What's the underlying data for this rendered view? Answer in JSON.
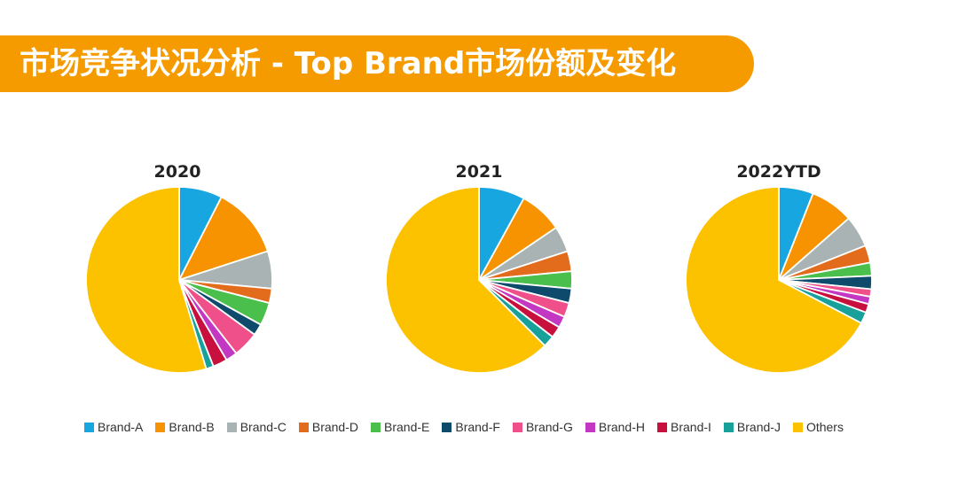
{
  "header": {
    "title": "市场竞争状况分析 - Top Brand市场份额及变化"
  },
  "colors": {
    "Brand-A": "#17a6e0",
    "Brand-B": "#f79200",
    "Brand-C": "#a9b3b3",
    "Brand-D": "#e26b1c",
    "Brand-E": "#4bbf4b",
    "Brand-F": "#0d4a6b",
    "Brand-G": "#f0508a",
    "Brand-H": "#c238c2",
    "Brand-I": "#c8103e",
    "Brand-J": "#17a19a",
    "Others": "#fcc200"
  },
  "chart_data": [
    {
      "type": "pie",
      "title": "2020",
      "categories": [
        "Brand-A",
        "Brand-B",
        "Brand-C",
        "Brand-D",
        "Brand-E",
        "Brand-F",
        "Brand-G",
        "Brand-H",
        "Brand-I",
        "Brand-J",
        "Others"
      ],
      "values": [
        7.5,
        12.5,
        6.5,
        2.5,
        4.0,
        2.0,
        4.5,
        2.0,
        2.5,
        1.3,
        54.7
      ]
    },
    {
      "type": "pie",
      "title": "2021",
      "categories": [
        "Brand-A",
        "Brand-B",
        "Brand-C",
        "Brand-D",
        "Brand-E",
        "Brand-F",
        "Brand-G",
        "Brand-H",
        "Brand-I",
        "Brand-J",
        "Others"
      ],
      "values": [
        8.0,
        7.5,
        4.5,
        3.5,
        3.0,
        2.5,
        2.5,
        2.0,
        2.0,
        2.0,
        62.5
      ]
    },
    {
      "type": "pie",
      "title": "2022YTD",
      "categories": [
        "Brand-A",
        "Brand-B",
        "Brand-C",
        "Brand-D",
        "Brand-E",
        "Brand-F",
        "Brand-G",
        "Brand-H",
        "Brand-I",
        "Brand-J",
        "Others"
      ],
      "values": [
        6.0,
        7.5,
        5.5,
        3.0,
        2.3,
        2.3,
        1.3,
        1.3,
        1.5,
        2.0,
        67.3
      ]
    }
  ],
  "legend": [
    "Brand-A",
    "Brand-B",
    "Brand-C",
    "Brand-D",
    "Brand-E",
    "Brand-F",
    "Brand-G",
    "Brand-H",
    "Brand-I",
    "Brand-J",
    "Others"
  ]
}
